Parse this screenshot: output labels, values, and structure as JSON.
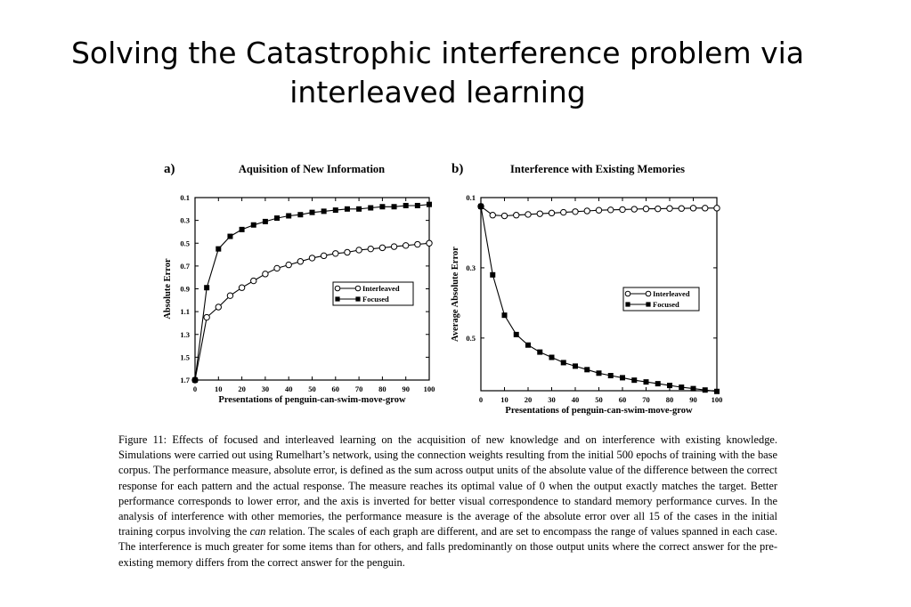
{
  "slide": {
    "title_line1": "Solving the Catastrophic interference problem via",
    "title_line2": "interleaved learning"
  },
  "chart_data": [
    {
      "panel_letter": "a)",
      "type": "line",
      "title": "Aquisition of New Information",
      "xlabel": "Presentations of penguin-can-swim-move-grow",
      "ylabel": "Absolute Error",
      "xlim": [
        0,
        100
      ],
      "ylim": [
        0.1,
        1.7
      ],
      "y_inverted": true,
      "x_ticks": [
        0,
        10,
        20,
        30,
        40,
        50,
        60,
        70,
        80,
        90,
        100
      ],
      "y_ticks": [
        "0.1",
        "0.3",
        "0.5",
        "0.7",
        "0.9",
        "1.1",
        "1.3",
        "1.5",
        "1.7"
      ],
      "grid": false,
      "legend_position": "center-right",
      "x": [
        0,
        5,
        10,
        15,
        20,
        25,
        30,
        35,
        40,
        45,
        50,
        55,
        60,
        65,
        70,
        75,
        80,
        85,
        90,
        95,
        100
      ],
      "series": [
        {
          "name": "Interleaved",
          "marker": "open-circle",
          "values": [
            1.7,
            1.15,
            1.06,
            0.96,
            0.89,
            0.83,
            0.77,
            0.72,
            0.69,
            0.66,
            0.63,
            0.61,
            0.59,
            0.58,
            0.56,
            0.55,
            0.54,
            0.53,
            0.52,
            0.51,
            0.5
          ]
        },
        {
          "name": "Focused",
          "marker": "filled-square",
          "values": [
            1.7,
            0.89,
            0.55,
            0.44,
            0.38,
            0.34,
            0.31,
            0.28,
            0.26,
            0.25,
            0.23,
            0.22,
            0.21,
            0.2,
            0.2,
            0.19,
            0.18,
            0.18,
            0.17,
            0.17,
            0.16
          ]
        }
      ]
    },
    {
      "panel_letter": "b)",
      "type": "line",
      "title": "Interference with Existing Memories",
      "xlabel": "Presentations of penguin-can-swim-move-grow",
      "ylabel": "Average Absolute Error",
      "xlim": [
        0,
        100
      ],
      "ylim": [
        0.1,
        0.65
      ],
      "y_inverted": true,
      "x_ticks": [
        0,
        10,
        20,
        30,
        40,
        50,
        60,
        70,
        80,
        90,
        100
      ],
      "y_ticks": [
        "0.1",
        "0.3",
        "0.5"
      ],
      "grid": false,
      "legend_position": "center-right",
      "x": [
        0,
        5,
        10,
        15,
        20,
        25,
        30,
        35,
        40,
        45,
        50,
        55,
        60,
        65,
        70,
        75,
        80,
        85,
        90,
        95,
        100
      ],
      "series": [
        {
          "name": "Interleaved",
          "marker": "open-circle",
          "values": [
            0.125,
            0.15,
            0.152,
            0.15,
            0.148,
            0.146,
            0.144,
            0.142,
            0.14,
            0.138,
            0.136,
            0.135,
            0.134,
            0.133,
            0.132,
            0.132,
            0.131,
            0.131,
            0.13,
            0.13,
            0.13
          ]
        },
        {
          "name": "Focused",
          "marker": "filled-square",
          "values": [
            0.125,
            0.32,
            0.435,
            0.49,
            0.52,
            0.54,
            0.555,
            0.57,
            0.58,
            0.59,
            0.6,
            0.607,
            0.613,
            0.62,
            0.625,
            0.63,
            0.635,
            0.64,
            0.644,
            0.648,
            0.652
          ]
        }
      ]
    }
  ],
  "caption": {
    "lead": "Figure 11: Effects of focused and interleaved learning on the acquisition of new knowledge and on interference with existing knowledge. Simulations were carried out using Rumelhart’s network, using the connection weights resulting from the initial 500 epochs of training with the base corpus. The performance measure, absolute error, is defined as the sum across output units of the absolute value of the difference between the correct response for each pattern and the actual response. The measure reaches its optimal value of 0 when the output exactly matches the target. Better performance corresponds to lower error, and the axis is inverted for better visual correspondence to standard memory performance curves. In the analysis of interference with other memories, the performance measure is the average of the absolute error over all 15 of the cases in the initial training corpus involving the",
    "italic_word": "can",
    "tail": "relation. The scales of each graph are different, and are set to encompass the range of values spanned in each case. The interference is much greater for some items than for others, and falls predominantly on those output units where the correct answer for the pre-existing memory differs from the correct answer for the penguin."
  }
}
